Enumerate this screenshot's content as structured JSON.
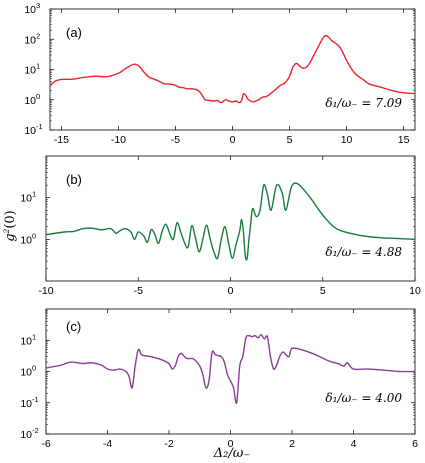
{
  "chart_data": [
    {
      "type": "line",
      "panel_label": "(a)",
      "annotation": "δ1/ω− = 7.09",
      "annotation_text": "δ₁/ω₋ = 7.09",
      "yscale": "log",
      "xlim": [
        -16,
        16
      ],
      "ylim": [
        0.1,
        1000
      ],
      "xticks": [
        -15,
        -10,
        -5,
        0,
        5,
        10,
        15
      ],
      "xticklabels": [
        "-15",
        "-10",
        "-5",
        "0",
        "5",
        "10",
        "15"
      ],
      "yticks": [
        0.1,
        1,
        10,
        100,
        1000
      ],
      "ytick_exponents": [
        "-1",
        "0",
        "1",
        "2",
        "3"
      ],
      "color": "#e8262a",
      "series": [
        {
          "x": [
            -16,
            -15.5,
            -15,
            -14,
            -13,
            -12,
            -11,
            -10,
            -9.5,
            -9,
            -8.6,
            -8.2,
            -7.8,
            -7.3,
            -7,
            -6.5,
            -6,
            -5.5,
            -5,
            -4.7,
            -4.3,
            -4,
            -3.5,
            -3,
            -2.7,
            -2.4,
            -2,
            -1.6,
            -1.3,
            -1,
            -0.6,
            -0.3,
            0,
            0.3,
            0.6,
            0.8,
            1,
            1.4,
            1.8,
            2,
            2.3,
            2.6,
            3,
            3.5,
            3.9,
            4.2,
            4.6,
            5,
            5.3,
            5.6,
            5.9,
            6.2,
            6.5,
            6.8,
            7.1,
            7.5,
            7.8,
            8.1,
            8.4,
            8.7,
            9,
            9.4,
            9.7,
            10,
            10.4,
            10.8,
            11.5,
            12,
            13,
            14,
            15,
            16
          ],
          "y": [
            3.0,
            4.2,
            4.7,
            4.8,
            5.5,
            6.0,
            5.8,
            7.5,
            10,
            13,
            15,
            13,
            8.5,
            5.5,
            5.0,
            4.2,
            3.4,
            3.3,
            3.0,
            2.6,
            2.5,
            2.3,
            2.3,
            2.0,
            1.5,
            1.0,
            0.95,
            0.9,
            0.95,
            0.8,
            1.0,
            0.9,
            0.85,
            0.9,
            0.8,
            0.95,
            1.6,
            1.0,
            0.85,
            0.9,
            1.0,
            1.2,
            1.3,
            1.8,
            2.4,
            3.0,
            3.6,
            6.0,
            12,
            16,
            13,
            11,
            12,
            17,
            28,
            55,
            90,
            130,
            120,
            90,
            75,
            55,
            35,
            20,
            11,
            7,
            4.5,
            3.3,
            2.6,
            2.0,
            1.7,
            1.6
          ]
        }
      ]
    },
    {
      "type": "line",
      "panel_label": "(b)",
      "annotation": "δ1/ω− = 4.88",
      "annotation_text": "δ₁/ω₋ = 4.88",
      "yscale": "log",
      "ylabel": "g²(0)",
      "ylabel_base": "g",
      "ylabel_sup": "2",
      "ylabel_tail": "(0)",
      "xlim": [
        -10,
        10
      ],
      "ylim": [
        0.1,
        100
      ],
      "xticks": [
        -10,
        -5,
        0,
        5,
        10
      ],
      "xticklabels": [
        "-10",
        "-5",
        "0",
        "5",
        "10"
      ],
      "yticks": [
        1,
        10
      ],
      "ytick_exponents": [
        "0",
        "1"
      ],
      "color": "#1b7a3a",
      "series": [
        {
          "x": [
            -10,
            -9,
            -8.5,
            -8,
            -7.5,
            -7,
            -6.5,
            -6.2,
            -6,
            -5.7,
            -5.4,
            -5.2,
            -5,
            -4.7,
            -4.5,
            -4.3,
            -4.1,
            -3.9,
            -3.7,
            -3.5,
            -3.3,
            -3.1,
            -2.9,
            -2.7,
            -2.5,
            -2.3,
            -2.1,
            -1.9,
            -1.7,
            -1.5,
            -1.3,
            -1.1,
            -0.9,
            -0.7,
            -0.5,
            -0.3,
            -0.1,
            0.1,
            0.3,
            0.5,
            0.6,
            0.7,
            0.8,
            0.9,
            1.0,
            1.1,
            1.2,
            1.4,
            1.6,
            1.8,
            2.0,
            2.2,
            2.5,
            2.8,
            3.0,
            3.3,
            3.6,
            4.0,
            4.4,
            4.8,
            5.2,
            5.6,
            6,
            7,
            8,
            9,
            10
          ],
          "y": [
            1.3,
            1.5,
            1.55,
            1.8,
            1.85,
            1.7,
            1.8,
            1.4,
            1.6,
            1.8,
            1.5,
            1.0,
            1.5,
            1.2,
            0.85,
            1.7,
            1.3,
            0.8,
            1.6,
            2.3,
            1.4,
            1.0,
            2.5,
            1.5,
            0.85,
            0.65,
            2.1,
            1.1,
            0.5,
            1.0,
            2.2,
            1.0,
            0.5,
            0.35,
            1.0,
            2.0,
            0.8,
            0.35,
            0.75,
            1.6,
            3.0,
            1.5,
            0.4,
            0.35,
            1.0,
            2.5,
            5.5,
            3.5,
            5.0,
            20,
            12,
            5.0,
            20,
            13,
            5.0,
            18,
            22,
            15,
            9,
            5,
            3,
            2,
            1.6,
            1.25,
            1.1,
            1.05,
            1.0
          ]
        }
      ]
    },
    {
      "type": "line",
      "panel_label": "(c)",
      "annotation": "δ1/ω− = 4.00",
      "annotation_text": "δ₁/ω₋ = 4.00",
      "yscale": "log",
      "xlabel": "Δ2/ω−",
      "xlabel_text": "Δ₂/ω₋",
      "xlim": [
        -6,
        6
      ],
      "ylim": [
        0.01,
        100
      ],
      "xticks": [
        -6,
        -4,
        -2,
        0,
        2,
        4,
        6
      ],
      "xticklabels": [
        "-6",
        "-4",
        "-2",
        "0",
        "2",
        "4",
        "6"
      ],
      "yticks": [
        0.01,
        0.1,
        1,
        10
      ],
      "ytick_exponents": [
        "-2",
        "-1",
        "0",
        "1"
      ],
      "color": "#8b3a96",
      "series": [
        {
          "x": [
            -6,
            -5.5,
            -5.2,
            -4.8,
            -4.5,
            -4.2,
            -4.0,
            -3.8,
            -3.6,
            -3.4,
            -3.3,
            -3.2,
            -3.1,
            -3.0,
            -2.9,
            -2.8,
            -2.6,
            -2.3,
            -2.0,
            -1.9,
            -1.8,
            -1.7,
            -1.6,
            -1.5,
            -1.4,
            -1.2,
            -1.0,
            -0.9,
            -0.8,
            -0.7,
            -0.6,
            -0.5,
            -0.4,
            -0.3,
            -0.2,
            -0.1,
            0.0,
            0.1,
            0.2,
            0.3,
            0.4,
            0.5,
            0.6,
            0.7,
            0.8,
            0.9,
            1.0,
            1.1,
            1.2,
            1.3,
            1.4,
            1.5,
            1.6,
            1.7,
            1.8,
            1.9,
            2.0,
            2.3,
            2.6,
            2.9,
            3.1,
            3.3,
            3.5,
            3.6,
            3.7,
            3.8,
            4.0,
            4.5,
            5,
            5.5,
            6
          ],
          "y": [
            1.3,
            1.6,
            2.0,
            1.8,
            1.9,
            1.6,
            1.2,
            1.1,
            1.2,
            1.0,
            0.7,
            0.3,
            1.5,
            5.0,
            3.5,
            3.2,
            3.0,
            2.5,
            1.8,
            1.2,
            1.5,
            3.0,
            3.8,
            3.0,
            2.6,
            2.5,
            1.5,
            0.8,
            0.3,
            0.5,
            4.0,
            3.5,
            3.2,
            3.0,
            2.0,
            0.8,
            0.5,
            0.3,
            0.1,
            1.5,
            3.0,
            12,
            14,
            13,
            14,
            12,
            15,
            11,
            13,
            3.0,
            1.2,
            1.6,
            3.0,
            4.2,
            3.5,
            3.0,
            5.5,
            5.0,
            4.0,
            3.0,
            2.4,
            2.0,
            1.8,
            1.6,
            1.5,
            1.9,
            1.2,
            1.2,
            1.1,
            1.0,
            1.0
          ]
        }
      ]
    }
  ]
}
